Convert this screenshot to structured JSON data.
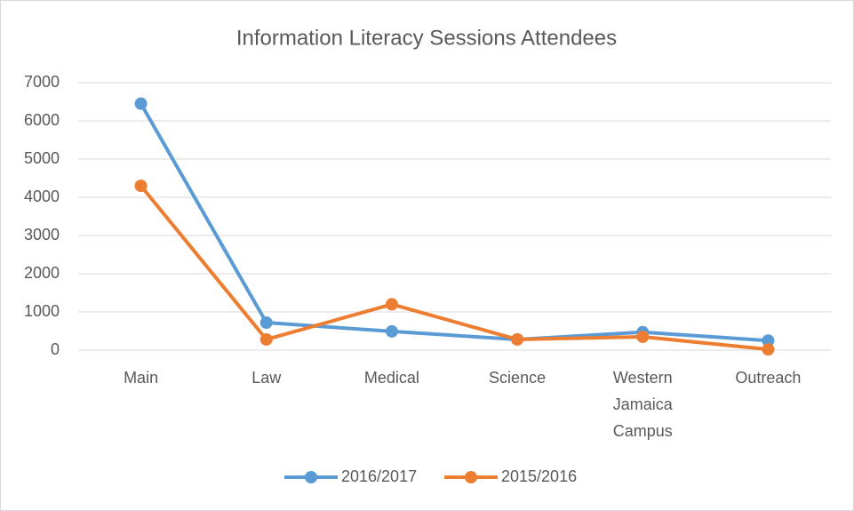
{
  "chart_data": {
    "type": "line",
    "title": "Information Literacy Sessions Attendees",
    "categories": [
      "Main",
      "Law",
      "Medical",
      "Science",
      "Western Jamaica Campus",
      "Outreach"
    ],
    "series": [
      {
        "name": "2016/2017",
        "color": "#5b9bd5",
        "values": [
          6450,
          720,
          490,
          280,
          470,
          250
        ]
      },
      {
        "name": "2015/2016",
        "color": "#ed7d31",
        "values": [
          4300,
          280,
          1200,
          280,
          350,
          20
        ]
      }
    ],
    "ylim": [
      0,
      7000
    ],
    "yticks": [
      0,
      1000,
      2000,
      3000,
      4000,
      5000,
      6000,
      7000
    ],
    "grid": true,
    "legend": "bottom"
  }
}
